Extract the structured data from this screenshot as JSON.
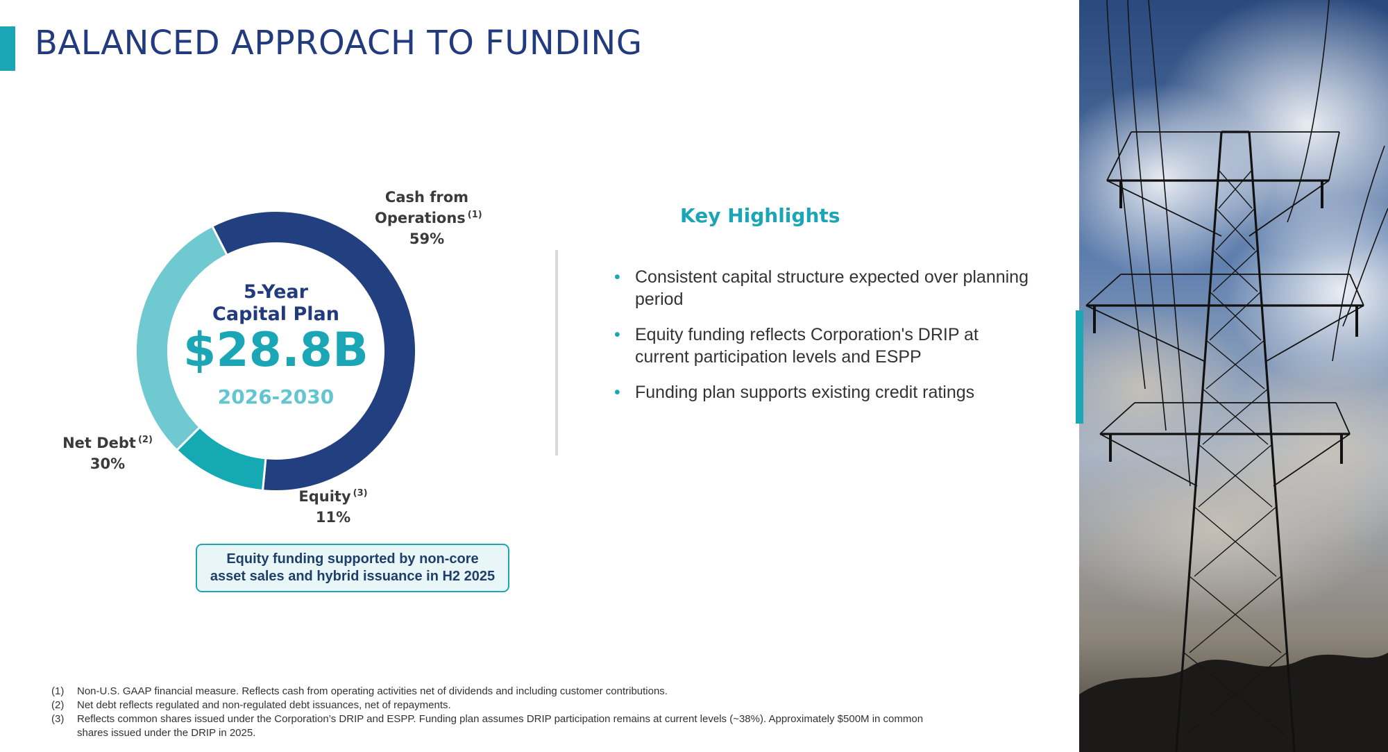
{
  "title": "BALANCED APPROACH TO FUNDING",
  "chart_data": {
    "type": "pie",
    "variant": "donut",
    "center": {
      "line1": "5-Year",
      "line2": "Capital Plan",
      "total": "$28.8B",
      "years": "2026-2030"
    },
    "slices": [
      {
        "label": "Cash from Operations",
        "label_line1": "Cash from",
        "label_line2": "Operations",
        "note": "(1)",
        "value": 59,
        "value_label": "59%",
        "color": "#223f7f"
      },
      {
        "label": "Equity",
        "note": "(3)",
        "value": 11,
        "value_label": "11%",
        "color": "#14a9b3"
      },
      {
        "label": "Net Debt",
        "note": "(2)",
        "value": 30,
        "value_label": "30%",
        "color": "#6ec9d1"
      }
    ]
  },
  "note_box": "Equity funding supported by non-core asset sales and hybrid issuance in H2 2025",
  "highlights": {
    "title": "Key Highlights",
    "items": [
      "Consistent capital structure expected over planning period",
      "Equity funding reflects Corporation's DRIP at current participation levels and ESPP",
      "Funding plan supports existing credit ratings"
    ]
  },
  "footnotes": [
    {
      "num": "(1)",
      "text": "Non-U.S. GAAP financial measure. Reflects cash from operating activities net of dividends and including customer contributions."
    },
    {
      "num": "(2)",
      "text": "Net debt reflects regulated and non-regulated debt issuances, net of repayments."
    },
    {
      "num": "(3)",
      "text": "Reflects common shares issued under the Corporation’s DRIP and ESPP. Funding plan assumes DRIP participation remains at current levels (~38%). Approximately $500M in common shares issued under the DRIP in 2025."
    }
  ],
  "colors": {
    "accent": "#1aa6b5",
    "navy": "#223a7e"
  },
  "bullet_glyph": "•"
}
